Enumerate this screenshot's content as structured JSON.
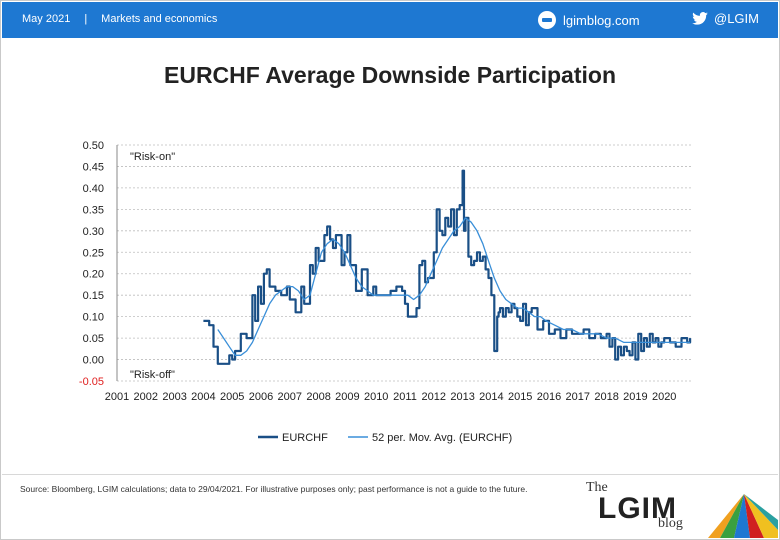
{
  "header": {
    "date": "May 2021",
    "separator": "|",
    "section": "Markets and economics",
    "site": "lgimblog.com",
    "twitter": "@LGIM"
  },
  "footer": {
    "source": "Source: Bloomberg, LGIM calculations; data to 29/04/2021. For illustrative purposes only; past performance is not a guide to the future.",
    "logo_the": "The",
    "logo_main": "LGIM",
    "logo_blog": "blog"
  },
  "colors": {
    "header_bg": "#1e78d2",
    "series_dark": "#1a4f86",
    "series_light": "#3a8fd8",
    "negative_tick": "#e02020"
  },
  "chart_data": {
    "type": "line",
    "title": "EURCHF Average Downside Participation",
    "annotations": [
      "\"Risk-on\"",
      "\"Risk-off\""
    ],
    "x_ticks": [
      "2001",
      "2002",
      "2003",
      "2004",
      "2005",
      "2006",
      "2007",
      "2008",
      "2009",
      "2010",
      "2011",
      "2012",
      "2013",
      "2014",
      "2015",
      "2016",
      "2017",
      "2018",
      "2019",
      "2020"
    ],
    "y_ticks": [
      "0.50",
      "0.45",
      "0.40",
      "0.35",
      "0.30",
      "0.25",
      "0.20",
      "0.15",
      "0.10",
      "0.05",
      "0.00",
      "-0.05"
    ],
    "xlim": [
      2001,
      2021
    ],
    "ylim": [
      -0.05,
      0.5
    ],
    "grid": true,
    "legend_position": "bottom",
    "series": [
      {
        "name": "EURCHF",
        "x": [
          2004.0,
          2004.2,
          2004.3,
          2004.35,
          2004.5,
          2004.7,
          2004.9,
          2005.0,
          2005.1,
          2005.3,
          2005.5,
          2005.7,
          2005.8,
          2005.9,
          2006.0,
          2006.1,
          2006.2,
          2006.3,
          2006.5,
          2006.7,
          2006.9,
          2007.0,
          2007.2,
          2007.4,
          2007.5,
          2007.7,
          2007.8,
          2007.9,
          2008.0,
          2008.2,
          2008.3,
          2008.4,
          2008.5,
          2008.6,
          2008.8,
          2008.9,
          2009.0,
          2009.1,
          2009.3,
          2009.5,
          2009.7,
          2009.9,
          2010.0,
          2010.3,
          2010.5,
          2010.7,
          2010.9,
          2011.0,
          2011.1,
          2011.3,
          2011.4,
          2011.5,
          2011.6,
          2011.7,
          2011.8,
          2011.9,
          2012.0,
          2012.1,
          2012.2,
          2012.3,
          2012.4,
          2012.5,
          2012.6,
          2012.7,
          2012.8,
          2012.9,
          2013.0,
          2013.05,
          2013.1,
          2013.2,
          2013.3,
          2013.4,
          2013.5,
          2013.6,
          2013.7,
          2013.8,
          2013.9,
          2014.0,
          2014.1,
          2014.2,
          2014.25,
          2014.3,
          2014.4,
          2014.5,
          2014.6,
          2014.7,
          2014.8,
          2014.9,
          2015.0,
          2015.1,
          2015.2,
          2015.3,
          2015.4,
          2015.6,
          2015.8,
          2016.0,
          2016.2,
          2016.4,
          2016.6,
          2016.8,
          2017.0,
          2017.2,
          2017.4,
          2017.6,
          2017.8,
          2018.0,
          2018.1,
          2018.2,
          2018.3,
          2018.4,
          2018.5,
          2018.6,
          2018.7,
          2018.8,
          2018.9,
          2019.0,
          2019.1,
          2019.2,
          2019.3,
          2019.4,
          2019.5,
          2019.6,
          2019.7,
          2019.8,
          2019.9,
          2020.0,
          2020.2,
          2020.4,
          2020.6,
          2020.8,
          2020.9
        ],
        "values": [
          0.09,
          0.08,
          0.08,
          0.03,
          -0.01,
          -0.01,
          0.01,
          0.0,
          0.02,
          0.06,
          0.05,
          0.15,
          0.09,
          0.17,
          0.13,
          0.2,
          0.21,
          0.17,
          0.16,
          0.15,
          0.17,
          0.14,
          0.11,
          0.17,
          0.13,
          0.22,
          0.2,
          0.26,
          0.23,
          0.29,
          0.31,
          0.28,
          0.26,
          0.29,
          0.22,
          0.25,
          0.29,
          0.22,
          0.16,
          0.21,
          0.15,
          0.17,
          0.15,
          0.15,
          0.16,
          0.17,
          0.16,
          0.13,
          0.1,
          0.1,
          0.12,
          0.22,
          0.23,
          0.18,
          0.19,
          0.19,
          0.25,
          0.35,
          0.3,
          0.29,
          0.33,
          0.31,
          0.35,
          0.29,
          0.35,
          0.36,
          0.44,
          0.3,
          0.33,
          0.24,
          0.22,
          0.23,
          0.25,
          0.23,
          0.24,
          0.21,
          0.19,
          0.15,
          0.02,
          0.1,
          0.11,
          0.12,
          0.1,
          0.12,
          0.11,
          0.13,
          0.12,
          0.1,
          0.09,
          0.13,
          0.08,
          0.11,
          0.12,
          0.07,
          0.09,
          0.06,
          0.07,
          0.05,
          0.07,
          0.06,
          0.06,
          0.07,
          0.05,
          0.06,
          0.05,
          0.06,
          0.03,
          0.05,
          0.0,
          0.03,
          0.01,
          0.03,
          0.02,
          0.01,
          0.04,
          0.0,
          0.06,
          0.02,
          0.05,
          0.03,
          0.06,
          0.04,
          0.05,
          0.03,
          0.04,
          0.05,
          0.04,
          0.03,
          0.05,
          0.04,
          0.05
        ]
      },
      {
        "name": "52 per. Mov. Avg. (EURCHF)",
        "x": [
          2004.5,
          2004.7,
          2004.9,
          2005.1,
          2005.3,
          2005.5,
          2005.7,
          2005.9,
          2006.1,
          2006.3,
          2006.5,
          2006.7,
          2006.9,
          2007.1,
          2007.3,
          2007.5,
          2007.7,
          2007.9,
          2008.1,
          2008.3,
          2008.5,
          2008.7,
          2008.9,
          2009.1,
          2009.3,
          2009.5,
          2009.7,
          2009.9,
          2010.1,
          2010.3,
          2010.5,
          2010.7,
          2010.9,
          2011.1,
          2011.3,
          2011.5,
          2011.7,
          2011.9,
          2012.1,
          2012.3,
          2012.5,
          2012.7,
          2012.9,
          2013.1,
          2013.3,
          2013.5,
          2013.7,
          2013.9,
          2014.1,
          2014.3,
          2014.5,
          2014.7,
          2014.9,
          2015.1,
          2015.3,
          2015.5,
          2015.7,
          2015.9,
          2016.2,
          2016.5,
          2016.8,
          2017.1,
          2017.4,
          2017.7,
          2018.0,
          2018.3,
          2018.6,
          2018.9,
          2019.2,
          2019.5,
          2019.8,
          2020.1,
          2020.4,
          2020.7,
          2020.9
        ],
        "values": [
          0.07,
          0.05,
          0.03,
          0.01,
          0.01,
          0.02,
          0.04,
          0.07,
          0.1,
          0.13,
          0.15,
          0.16,
          0.17,
          0.17,
          0.16,
          0.14,
          0.15,
          0.2,
          0.25,
          0.27,
          0.28,
          0.27,
          0.25,
          0.22,
          0.19,
          0.17,
          0.16,
          0.15,
          0.15,
          0.15,
          0.15,
          0.15,
          0.15,
          0.15,
          0.14,
          0.15,
          0.17,
          0.2,
          0.23,
          0.26,
          0.28,
          0.3,
          0.31,
          0.33,
          0.32,
          0.3,
          0.27,
          0.23,
          0.19,
          0.16,
          0.14,
          0.13,
          0.12,
          0.12,
          0.11,
          0.1,
          0.1,
          0.09,
          0.08,
          0.07,
          0.07,
          0.06,
          0.06,
          0.06,
          0.05,
          0.05,
          0.04,
          0.04,
          0.04,
          0.04,
          0.04,
          0.04,
          0.04,
          0.04,
          0.04
        ]
      }
    ],
    "legend": [
      "EURCHF",
      "52 per. Mov. Avg. (EURCHF)"
    ]
  }
}
